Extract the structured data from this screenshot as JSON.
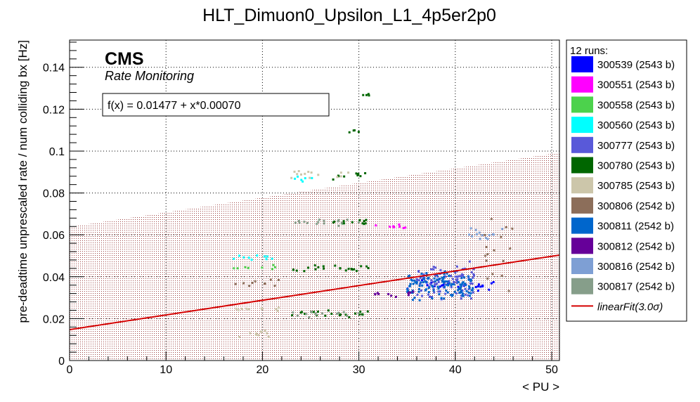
{
  "chart_data": {
    "type": "scatter",
    "title": "HLT_Dimuon0_Upsilon_L1_4p5er2p0",
    "xlabel": "< PU >",
    "ylabel": "pre-deadtime unprescaled rate / num colliding bx [Hz]",
    "xlim": [
      0,
      50.8
    ],
    "ylim": [
      0,
      0.153
    ],
    "x_ticks": [
      "0",
      "10",
      "20",
      "30",
      "40",
      "50"
    ],
    "y_ticks": [
      "0",
      "0.02",
      "0.04",
      "0.06",
      "0.08",
      "0.1",
      "0.12",
      "0.14"
    ],
    "grid": true,
    "legend_position": "right",
    "legend_header": "12 runs:",
    "cms_label": "CMS",
    "cms_sublabel": "Rate Monitoring",
    "fit_text": "f(x) = 0.01477 + x*0.00070",
    "fit": {
      "name": "linearFit(3.0σ)",
      "intercept": 0.01477,
      "slope": 0.0007,
      "color": "#d40000"
    },
    "series": [
      {
        "name": "300539 (2543 b)",
        "color": "#0000ff",
        "clusters": [
          {
            "x": [
              35,
              44
            ],
            "y": [
              0.036,
              0.004
            ],
            "n": 25
          }
        ]
      },
      {
        "name": "300551 (2543 b)",
        "color": "#ff00ff",
        "clusters": [
          {
            "x": [
              31,
              35
            ],
            "y": [
              0.064,
              0.002
            ],
            "n": 8
          }
        ]
      },
      {
        "name": "300558 (2543 b)",
        "color": "#4cd24c",
        "clusters": [
          {
            "x": [
              17,
              22
            ],
            "y": [
              0.044,
              0.002
            ],
            "n": 8
          }
        ]
      },
      {
        "name": "300560 (2543 b)",
        "color": "#00ffff",
        "clusters": [
          {
            "x": [
              17,
              22
            ],
            "y": [
              0.049,
              0.002
            ],
            "n": 10
          },
          {
            "x": [
              23,
              26
            ],
            "y": [
              0.087,
              0.002
            ],
            "n": 6
          }
        ]
      },
      {
        "name": "300777 (2543 b)",
        "color": "#5959d9",
        "clusters": [
          {
            "x": [
              36,
              42
            ],
            "y": [
              0.038,
              0.01
            ],
            "n": 110
          }
        ]
      },
      {
        "name": "300780 (2543 b)",
        "color": "#006600",
        "clusters": [
          {
            "x": [
              23,
              31
            ],
            "y": [
              0.044,
              0.002
            ],
            "n": 22
          },
          {
            "x": [
              23,
              31
            ],
            "y": [
              0.022,
              0.002
            ],
            "n": 22
          },
          {
            "x": [
              27,
              31
            ],
            "y": [
              0.066,
              0.002
            ],
            "n": 12
          },
          {
            "x": [
              27,
              31
            ],
            "y": [
              0.088,
              0.002
            ],
            "n": 10
          },
          {
            "x": [
              29,
              31
            ],
            "y": [
              0.11,
              0.002
            ],
            "n": 4
          },
          {
            "x": [
              30,
              32
            ],
            "y": [
              0.127,
              0.001
            ],
            "n": 4
          }
        ]
      },
      {
        "name": "300785 (2543 b)",
        "color": "#ccc6aa",
        "clusters": [
          {
            "x": [
              17,
              22
            ],
            "y": [
              0.025,
              0.002
            ],
            "n": 10
          },
          {
            "x": [
              17,
              22
            ],
            "y": [
              0.013,
              0.002
            ],
            "n": 10
          },
          {
            "x": [
              23,
              30
            ],
            "y": [
              0.089,
              0.002
            ],
            "n": 14
          }
        ]
      },
      {
        "name": "300806 (2542 b)",
        "color": "#8c6e5a",
        "clusters": [
          {
            "x": [
              17,
              22
            ],
            "y": [
              0.037,
              0.002
            ],
            "n": 10
          },
          {
            "x": [
              43,
              46
            ],
            "y": [
              0.052,
              0.02
            ],
            "n": 16
          }
        ]
      },
      {
        "name": "300811 (2542 b)",
        "color": "#0066cc",
        "clusters": [
          {
            "x": [
              35,
              42
            ],
            "y": [
              0.036,
              0.008
            ],
            "n": 120
          }
        ]
      },
      {
        "name": "300812 (2542 b)",
        "color": "#660099",
        "clusters": [
          {
            "x": [
              31,
              36
            ],
            "y": [
              0.032,
              0.002
            ],
            "n": 12
          }
        ]
      },
      {
        "name": "300816 (2542 b)",
        "color": "#7e9fd4",
        "clusters": [
          {
            "x": [
              41,
              45
            ],
            "y": [
              0.06,
              0.004
            ],
            "n": 14
          }
        ]
      },
      {
        "name": "300817 (2542 b)",
        "color": "#869e8a",
        "clusters": [
          {
            "x": [
              23,
              30
            ],
            "y": [
              0.066,
              0.002
            ],
            "n": 16
          },
          {
            "x": [
              23,
              30
            ],
            "y": [
              0.022,
              0.002
            ],
            "n": 14
          }
        ]
      }
    ]
  }
}
